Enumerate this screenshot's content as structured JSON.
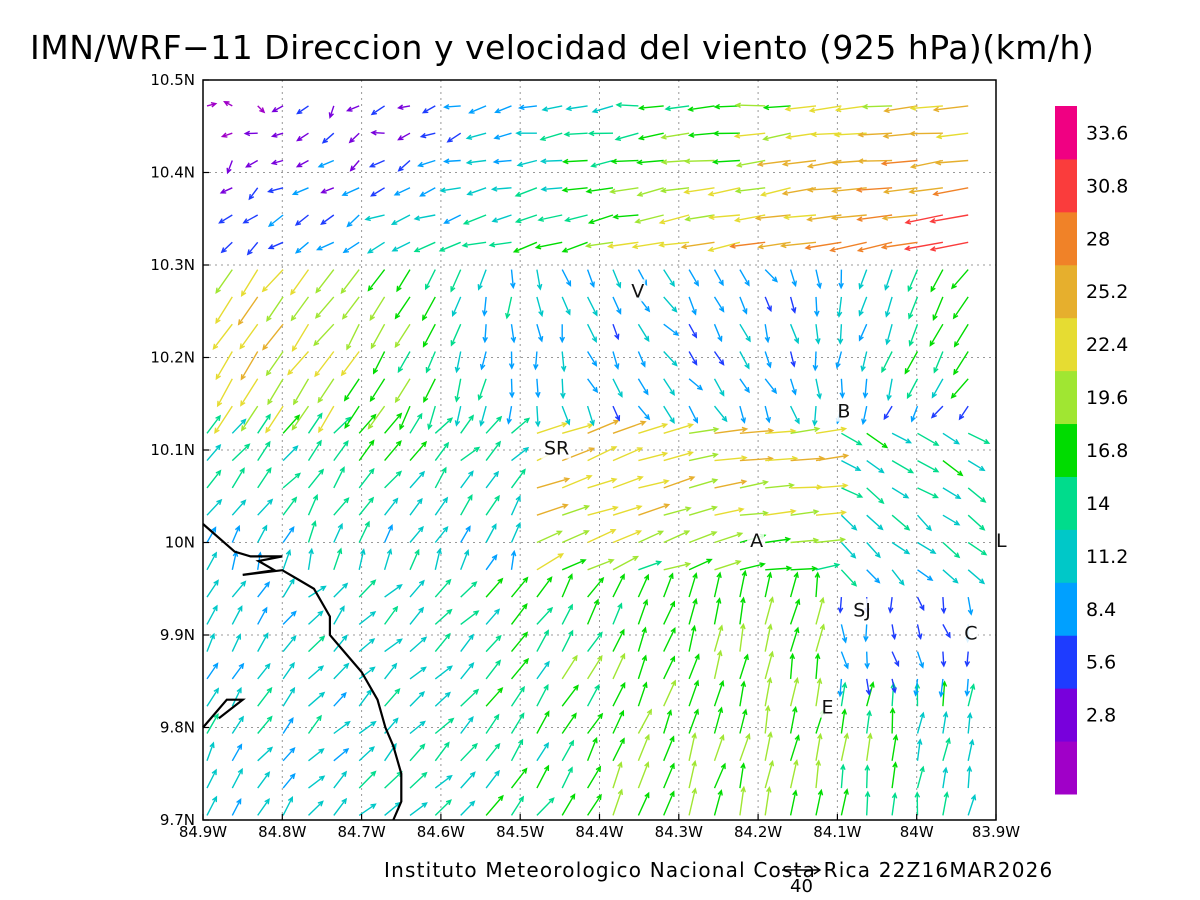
{
  "title": "IMN/WRF−11 Direccion y velocidad del viento (925 hPa)(km/h)",
  "footer": "Instituto Meteorologico Nacional Costa Rica 22Z16MAR2026",
  "reference_vector": {
    "label": "40",
    "value": 40
  },
  "axes": {
    "lon_min": -84.9,
    "lon_max": -83.9,
    "lat_min": 9.7,
    "lat_max": 10.5,
    "lon_ticks": [
      "84.9W",
      "84.8W",
      "84.7W",
      "84.6W",
      "84.5W",
      "84.4W",
      "84.3W",
      "84.2W",
      "84.1W",
      "84W",
      "83.9W"
    ],
    "lat_ticks": [
      "9.7N",
      "9.8N",
      "9.9N",
      "10N",
      "10.1N",
      "10.2N",
      "10.3N",
      "10.4N",
      "10.5N"
    ],
    "grid": true
  },
  "colorbar": {
    "colors": [
      "#a000c8",
      "#7800dc",
      "#1e3cff",
      "#00a0ff",
      "#00c8c8",
      "#00dc8c",
      "#00dc00",
      "#a0e632",
      "#e6dc32",
      "#e6af2d",
      "#f08228",
      "#fa3c3c",
      "#f00082"
    ],
    "labels": [
      "2.8",
      "5.6",
      "8.4",
      "11.2",
      "14",
      "16.8",
      "19.6",
      "22.4",
      "25.2",
      "28",
      "30.8",
      "33.6"
    ]
  },
  "places": [
    {
      "code": "V",
      "lon": -84.36,
      "lat": 10.265
    },
    {
      "code": "SR",
      "lon": -84.47,
      "lat": 10.095
    },
    {
      "code": "B",
      "lon": -84.1,
      "lat": 10.135
    },
    {
      "code": "A",
      "lon": -84.21,
      "lat": 9.995
    },
    {
      "code": "SJ",
      "lon": -84.08,
      "lat": 9.92
    },
    {
      "code": "C",
      "lon": -83.94,
      "lat": 9.895
    },
    {
      "code": "E",
      "lon": -84.12,
      "lat": 9.815
    },
    {
      "code": "L",
      "lon": -83.9,
      "lat": 9.995
    }
  ],
  "coastline": [
    [
      -84.9,
      10.02
    ],
    [
      -84.86,
      9.99
    ],
    [
      -84.84,
      9.985
    ],
    [
      -84.8,
      9.985
    ],
    [
      -84.83,
      9.98
    ],
    [
      -84.81,
      9.97
    ],
    [
      -84.85,
      9.965
    ],
    [
      -84.8,
      9.97
    ],
    [
      -84.78,
      9.96
    ],
    [
      -84.76,
      9.95
    ],
    [
      -84.74,
      9.92
    ],
    [
      -84.74,
      9.9
    ],
    [
      -84.72,
      9.88
    ],
    [
      -84.7,
      9.86
    ],
    [
      -84.68,
      9.83
    ],
    [
      -84.67,
      9.8
    ],
    [
      -84.66,
      9.78
    ],
    [
      -84.65,
      9.75
    ],
    [
      -84.65,
      9.72
    ],
    [
      -84.66,
      9.7
    ]
  ],
  "coastline2": [
    [
      -84.9,
      9.8
    ],
    [
      -84.87,
      9.83
    ],
    [
      -84.85,
      9.83
    ],
    [
      -84.88,
      9.81
    ]
  ]
}
